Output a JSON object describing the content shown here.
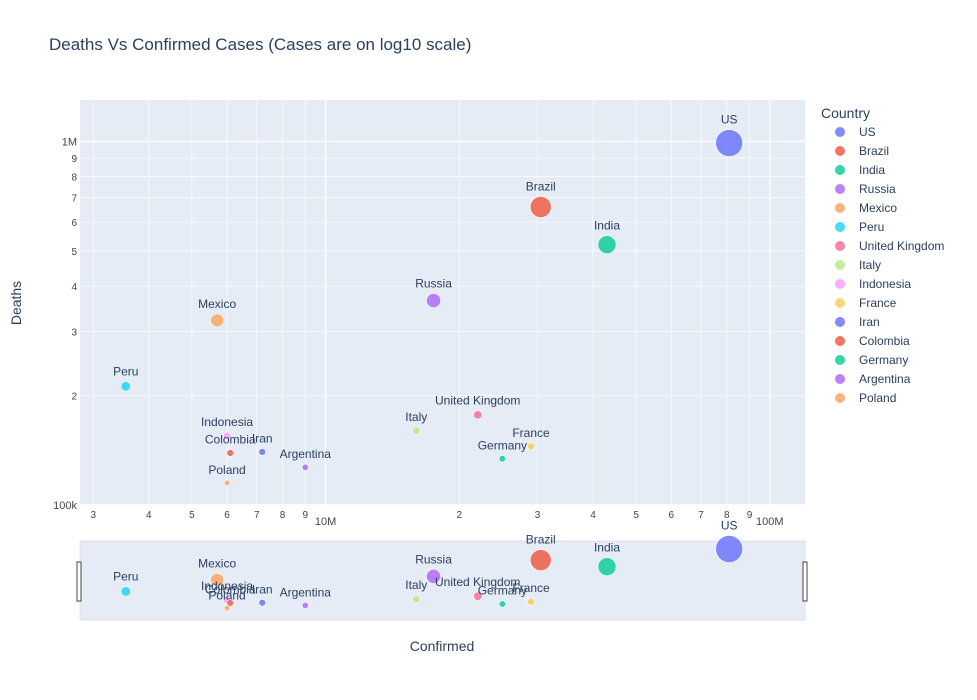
{
  "chart_data": {
    "type": "scatter",
    "title": "Deaths Vs Confirmed Cases (Cases are on log10 scale)",
    "xlabel": "Confirmed",
    "ylabel": "Deaths",
    "x_scale": "log",
    "y_scale": "log",
    "xlim": [
      2800000,
      120000000
    ],
    "ylim": [
      100000,
      1300000
    ],
    "x_ticks_major": [
      {
        "v": 10000000,
        "label": "10M"
      },
      {
        "v": 100000000,
        "label": "100M"
      }
    ],
    "x_ticks_minor": [
      {
        "v": 3000000,
        "label": "3"
      },
      {
        "v": 4000000,
        "label": "4"
      },
      {
        "v": 5000000,
        "label": "5"
      },
      {
        "v": 6000000,
        "label": "6"
      },
      {
        "v": 7000000,
        "label": "7"
      },
      {
        "v": 8000000,
        "label": "8"
      },
      {
        "v": 9000000,
        "label": "9"
      },
      {
        "v": 20000000,
        "label": "2"
      },
      {
        "v": 30000000,
        "label": "3"
      },
      {
        "v": 40000000,
        "label": "4"
      },
      {
        "v": 50000000,
        "label": "5"
      },
      {
        "v": 60000000,
        "label": "6"
      },
      {
        "v": 70000000,
        "label": "7"
      },
      {
        "v": 80000000,
        "label": "8"
      },
      {
        "v": 90000000,
        "label": "9"
      }
    ],
    "y_ticks_major": [
      {
        "v": 100000,
        "label": "100k"
      },
      {
        "v": 1000000,
        "label": "1M"
      }
    ],
    "y_ticks_minor": [
      {
        "v": 200000,
        "label": "2"
      },
      {
        "v": 300000,
        "label": "3"
      },
      {
        "v": 400000,
        "label": "4"
      },
      {
        "v": 500000,
        "label": "5"
      },
      {
        "v": 600000,
        "label": "6"
      },
      {
        "v": 700000,
        "label": "7"
      },
      {
        "v": 800000,
        "label": "8"
      },
      {
        "v": 900000,
        "label": "9"
      }
    ],
    "grid": true,
    "legend": {
      "title": "Country",
      "placement": "right"
    },
    "rangeslider": true,
    "series": [
      {
        "name": "US",
        "x": 81000000,
        "y": 990000,
        "color": "#636efa"
      },
      {
        "name": "Brazil",
        "x": 30500000,
        "y": 660000,
        "color": "#EF553B"
      },
      {
        "name": "India",
        "x": 43000000,
        "y": 520000,
        "color": "#00cc96"
      },
      {
        "name": "Russia",
        "x": 17500000,
        "y": 365000,
        "color": "#ab63fa"
      },
      {
        "name": "Mexico",
        "x": 5700000,
        "y": 322000,
        "color": "#FFA15A"
      },
      {
        "name": "Peru",
        "x": 3550000,
        "y": 212000,
        "color": "#19d3f3"
      },
      {
        "name": "United Kingdom",
        "x": 22000000,
        "y": 177000,
        "color": "#FF6692"
      },
      {
        "name": "Italy",
        "x": 16000000,
        "y": 160000,
        "color": "#B6E880"
      },
      {
        "name": "Indonesia",
        "x": 6000000,
        "y": 155000,
        "color": "#FF97FF"
      },
      {
        "name": "France",
        "x": 29000000,
        "y": 145000,
        "color": "#FECB52"
      },
      {
        "name": "Iran",
        "x": 7200000,
        "y": 140000,
        "color": "#636efa"
      },
      {
        "name": "Colombia",
        "x": 6100000,
        "y": 139000,
        "color": "#EF553B"
      },
      {
        "name": "Germany",
        "x": 25000000,
        "y": 134000,
        "color": "#00cc96"
      },
      {
        "name": "Argentina",
        "x": 9000000,
        "y": 127000,
        "color": "#ab63fa"
      },
      {
        "name": "Poland",
        "x": 6000000,
        "y": 115000,
        "color": "#FFA15A"
      }
    ]
  }
}
